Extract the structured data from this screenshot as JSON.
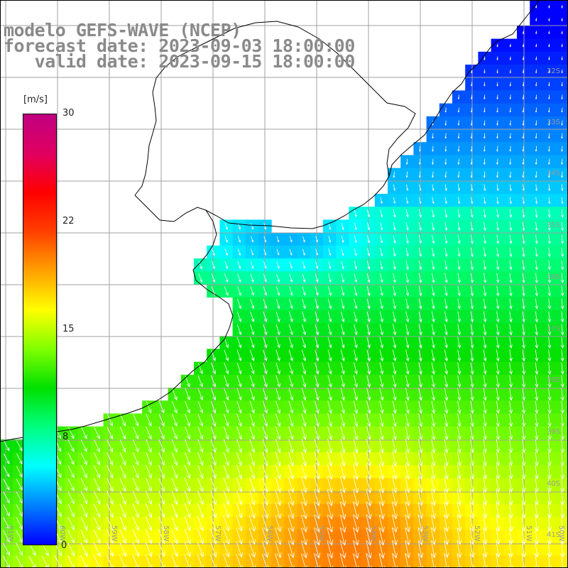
{
  "title": {
    "line1": "modelo GEFS-WAVE (NCEP)",
    "line2": "forecast date: 2023-09-03 18:00:00",
    "line3": "   valid date: 2023-09-15 18:00:00"
  },
  "colorbar": {
    "unit": "[m/s]",
    "ticks": [
      "30",
      "22",
      "15",
      "8",
      "0"
    ],
    "range": [
      0,
      30
    ],
    "stops": [
      "#0000ff",
      "#0080ff",
      "#00ffff",
      "#00ff80",
      "#00e000",
      "#80ff00",
      "#ffff00",
      "#ffa000",
      "#ff4000",
      "#ff0000",
      "#e00060",
      "#c00080"
    ]
  },
  "map": {
    "lat_labels": [
      "32S",
      "33S",
      "34S",
      "35S",
      "36S",
      "37S",
      "38S",
      "39S",
      "40S",
      "41S"
    ],
    "lon_labels": [
      "61W",
      "60W",
      "59W",
      "58W",
      "57W",
      "56W",
      "55W",
      "54W",
      "53W",
      "52W",
      "51W",
      "50W"
    ],
    "arrow_color": "#ffffff",
    "land_color": "#ffffff",
    "coast_color": "#000000",
    "grid_color": "#a0a0a0"
  }
}
